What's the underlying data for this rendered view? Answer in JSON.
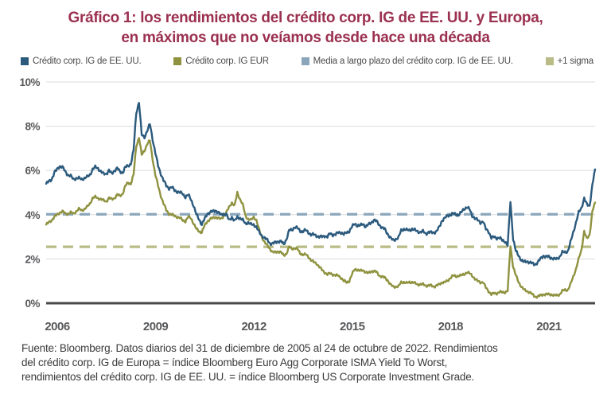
{
  "title": {
    "line1": "Gráfico 1: los rendimientos del crédito corp. IG de EE. UU. y Europa,",
    "line2": "en máximos que no veíamos desde hace una década"
  },
  "colors": {
    "title": "#9b3150",
    "us": "#2b5a7d",
    "eur": "#8f923f",
    "mean": "#8ba6bb",
    "sigma": "#b9bc85",
    "grid": "#d9dcde",
    "axis": "#474849",
    "tick_text": "#58595b",
    "legend_text": "#4a4a4a"
  },
  "legend": [
    {
      "label": "Crédito corp. IG de EE. UU.",
      "color_key": "us"
    },
    {
      "label": "Crédito corp. IG EUR",
      "color_key": "eur"
    },
    {
      "label": "Media a largo plazo del crédito corp. IG de EE. UU.",
      "color_key": "mean"
    },
    {
      "label": "+1 sigma",
      "color_key": "sigma"
    }
  ],
  "footer": {
    "line1": "Fuente: Bloomberg. Datos diarios del 31 de diciembre de 2005 al 24 de octubre de 2022. Rendimientos",
    "line2": "del crédito corp. IG de Europa = índice Bloomberg Euro Agg Corporate ISMA Yield To Worst,",
    "line3": "rendimientos del crédito corp. IG de EE. UU. = índice Bloomberg US Corporate Investment Grade."
  },
  "chart_data": {
    "type": "line",
    "title": "Gráfico 1: los rendimientos del crédito corp. IG de EE. UU. y Europa, en máximos que no veíamos desde hace una década",
    "x_start_year": 2006,
    "x_end_year": 2022.83,
    "frequency": "monthly",
    "ylim": [
      0,
      10
    ],
    "yticks": [
      0,
      2,
      4,
      6,
      8,
      10
    ],
    "ytick_suffix": "%",
    "xticks": [
      2006,
      2009,
      2012,
      2015,
      2018,
      2021
    ],
    "grid": true,
    "legend_position": "top",
    "series": [
      {
        "name": "Crédito corp. IG de EE. UU.",
        "color_key": "us",
        "values": [
          5.4,
          5.5,
          5.6,
          5.9,
          6.05,
          6.2,
          6.15,
          5.95,
          5.8,
          5.75,
          5.6,
          5.65,
          5.65,
          5.6,
          5.65,
          5.7,
          5.8,
          6.05,
          6.15,
          6.1,
          5.95,
          5.85,
          5.85,
          6.0,
          5.85,
          6.0,
          6.1,
          5.95,
          5.9,
          6.15,
          6.2,
          6.3,
          6.9,
          8.6,
          9.1,
          7.6,
          7.5,
          7.8,
          8.1,
          7.4,
          6.8,
          6.2,
          5.85,
          5.55,
          5.3,
          5.2,
          5.25,
          5.1,
          5.05,
          5.0,
          4.95,
          4.8,
          4.9,
          4.7,
          4.4,
          4.0,
          3.8,
          3.55,
          3.8,
          4.05,
          4.1,
          4.15,
          4.2,
          4.1,
          4.0,
          4.05,
          4.0,
          3.75,
          3.9,
          3.7,
          3.9,
          3.85,
          3.75,
          3.6,
          3.65,
          3.55,
          3.55,
          3.45,
          3.2,
          3.05,
          2.95,
          2.85,
          2.7,
          2.7,
          2.75,
          2.8,
          2.8,
          2.65,
          2.9,
          3.3,
          3.3,
          3.45,
          3.4,
          3.25,
          3.25,
          3.3,
          3.2,
          3.1,
          3.1,
          3.05,
          3.0,
          3.0,
          3.05,
          3.0,
          3.15,
          3.1,
          3.1,
          3.2,
          3.2,
          3.1,
          3.2,
          3.25,
          3.45,
          3.6,
          3.5,
          3.5,
          3.6,
          3.45,
          3.55,
          3.65,
          3.75,
          3.7,
          3.55,
          3.4,
          3.35,
          3.15,
          2.95,
          2.85,
          2.9,
          2.95,
          3.3,
          3.35,
          3.3,
          3.3,
          3.35,
          3.3,
          3.25,
          3.2,
          3.25,
          3.15,
          3.2,
          3.2,
          3.2,
          3.25,
          3.45,
          3.75,
          3.85,
          3.95,
          4.0,
          4.05,
          4.0,
          4.0,
          4.1,
          4.25,
          4.35,
          4.25,
          3.95,
          3.85,
          3.75,
          3.65,
          3.7,
          3.35,
          3.25,
          2.95,
          3.0,
          2.95,
          2.95,
          2.85,
          2.8,
          2.6,
          4.6,
          2.9,
          2.35,
          2.15,
          1.95,
          1.85,
          1.9,
          1.85,
          1.8,
          1.75,
          1.85,
          2.0,
          2.15,
          2.1,
          2.1,
          2.05,
          2.0,
          2.0,
          2.1,
          2.3,
          2.3,
          2.35,
          2.75,
          3.2,
          3.65,
          4.1,
          4.3,
          4.75,
          4.45,
          4.4,
          5.35,
          6.05
        ]
      },
      {
        "name": "Crédito corp. IG EUR",
        "color_key": "eur",
        "values": [
          3.55,
          3.65,
          3.75,
          3.9,
          4.0,
          4.1,
          4.15,
          4.05,
          4.05,
          4.1,
          4.05,
          4.15,
          4.25,
          4.2,
          4.25,
          4.35,
          4.5,
          4.75,
          4.8,
          4.75,
          4.7,
          4.65,
          4.6,
          4.75,
          4.7,
          4.75,
          4.9,
          4.85,
          4.95,
          5.3,
          5.45,
          5.4,
          5.8,
          7.1,
          7.5,
          6.7,
          6.9,
          7.2,
          7.35,
          6.5,
          5.8,
          5.3,
          4.85,
          4.5,
          4.2,
          4.05,
          4.0,
          3.95,
          3.9,
          3.85,
          3.75,
          3.7,
          3.9,
          3.85,
          3.6,
          3.35,
          3.25,
          3.2,
          3.5,
          3.7,
          3.8,
          3.85,
          3.9,
          3.85,
          3.8,
          3.95,
          4.1,
          4.35,
          4.55,
          4.4,
          5.0,
          4.7,
          4.45,
          3.95,
          3.8,
          3.75,
          3.9,
          3.75,
          3.3,
          3.0,
          2.75,
          2.6,
          2.45,
          2.3,
          2.3,
          2.35,
          2.3,
          2.15,
          2.25,
          2.55,
          2.45,
          2.5,
          2.45,
          2.25,
          2.2,
          2.2,
          2.1,
          1.95,
          1.85,
          1.8,
          1.65,
          1.5,
          1.4,
          1.3,
          1.35,
          1.3,
          1.25,
          1.25,
          1.15,
          1.0,
          0.95,
          1.0,
          1.3,
          1.55,
          1.5,
          1.45,
          1.5,
          1.4,
          1.35,
          1.45,
          1.45,
          1.4,
          1.25,
          1.2,
          1.15,
          1.05,
          0.85,
          0.75,
          0.75,
          0.75,
          0.95,
          0.95,
          0.9,
          0.95,
          0.95,
          0.9,
          0.85,
          0.85,
          0.85,
          0.8,
          0.8,
          0.8,
          0.75,
          0.8,
          0.85,
          0.95,
          0.95,
          1.0,
          1.15,
          1.25,
          1.2,
          1.25,
          1.25,
          1.3,
          1.4,
          1.35,
          1.25,
          1.1,
          1.0,
          0.95,
          0.95,
          0.7,
          0.55,
          0.4,
          0.45,
          0.45,
          0.5,
          0.5,
          0.5,
          0.55,
          2.6,
          1.65,
          1.25,
          0.95,
          0.75,
          0.6,
          0.55,
          0.5,
          0.4,
          0.3,
          0.3,
          0.35,
          0.4,
          0.4,
          0.4,
          0.4,
          0.35,
          0.35,
          0.4,
          0.55,
          0.6,
          0.6,
          0.85,
          1.2,
          1.55,
          2.0,
          2.4,
          3.25,
          2.9,
          3.1,
          4.15,
          4.55
        ]
      }
    ],
    "reference_lines": [
      {
        "name": "Media a largo plazo del crédito corp. IG de EE. UU.",
        "value": 4.02,
        "style": "dashed",
        "color_key": "mean"
      },
      {
        "name": "+1 sigma",
        "value": 2.55,
        "style": "dashed",
        "color_key": "sigma"
      }
    ]
  }
}
